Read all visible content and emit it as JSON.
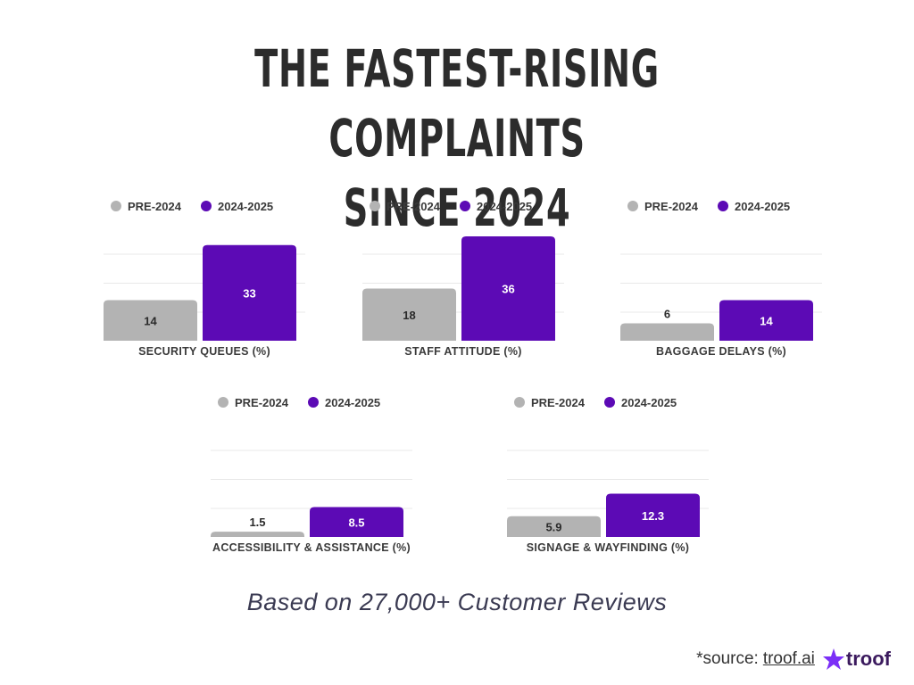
{
  "title": {
    "line1": "THE FASTEST-RISING COMPLAINTS",
    "line2": "SINCE 2024"
  },
  "colors": {
    "pre": "#b3b3b3",
    "post": "#5c0ab5",
    "grid": "#e8e8e8"
  },
  "legend": {
    "pre": "PRE-2024",
    "post": "2024-2025"
  },
  "chart_data": [
    {
      "type": "bar",
      "xlabel": "SECURITY QUEUES (%)",
      "categories": [
        "PRE-2024",
        "2024-2025"
      ],
      "values": [
        14,
        33
      ],
      "value_labels": [
        "14",
        "33"
      ],
      "ylim": [
        0,
        40
      ]
    },
    {
      "type": "bar",
      "xlabel": "STAFF ATTITUDE (%)",
      "categories": [
        "PRE-2024",
        "2024-2025"
      ],
      "values": [
        18,
        36
      ],
      "value_labels": [
        "18",
        "36"
      ],
      "ylim": [
        0,
        40
      ]
    },
    {
      "type": "bar",
      "xlabel": "BAGGAGE DELAYS (%)",
      "categories": [
        "PRE-2024",
        "2024-2025"
      ],
      "values": [
        6,
        14
      ],
      "value_labels": [
        "6",
        "14"
      ],
      "ylim": [
        0,
        40
      ]
    },
    {
      "type": "bar",
      "xlabel": "ACCESSIBILITY & ASSISTANCE (%)",
      "categories": [
        "PRE-2024",
        "2024-2025"
      ],
      "values": [
        1.5,
        8.5
      ],
      "value_labels": [
        "1.5",
        "8.5"
      ],
      "ylim": [
        0,
        33
      ]
    },
    {
      "type": "bar",
      "xlabel": "SIGNAGE & WAYFINDING (%)",
      "categories": [
        "PRE-2024",
        "2024-2025"
      ],
      "values": [
        5.9,
        12.3
      ],
      "value_labels": [
        "5.9",
        "12.3"
      ],
      "ylim": [
        0,
        33
      ]
    }
  ],
  "footer": {
    "subtitle": "Based on 27,000+ Customer Reviews",
    "source_prefix": "*source:",
    "source_link": "troof.ai",
    "brand": "troof"
  }
}
